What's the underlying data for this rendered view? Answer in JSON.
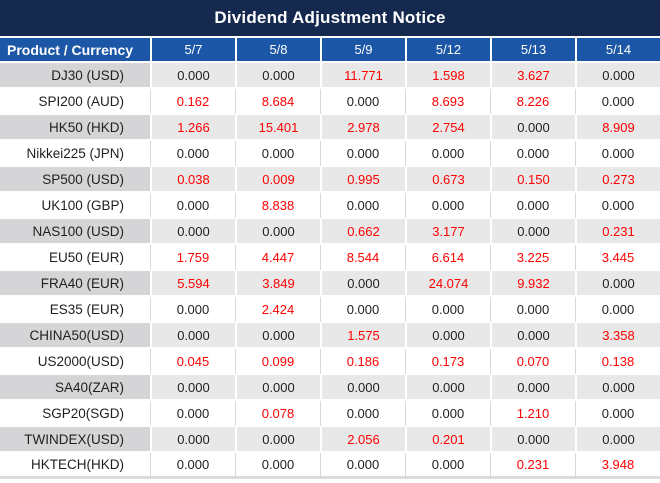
{
  "title": "Dividend Adjustment Notice",
  "colors": {
    "title_bg": "#15294e",
    "header_bg": "#1c57a7",
    "stripe_bg": "#e8e8e8",
    "stripe_first_col_bg": "#d5d5d7",
    "red_value": "#fe0000",
    "black_value": "#1f1f1f"
  },
  "table": {
    "product_header": "Product / Currency",
    "date_headers": [
      "5/7",
      "5/8",
      "5/9",
      "5/12",
      "5/13",
      "5/14"
    ],
    "rows": [
      {
        "product": "DJ30 (USD)",
        "values": [
          "0.000",
          "0.000",
          "11.771",
          "1.598",
          "3.627",
          "0.000"
        ],
        "red": [
          false,
          false,
          true,
          true,
          true,
          false
        ]
      },
      {
        "product": "SPI200 (AUD)",
        "values": [
          "0.162",
          "8.684",
          "0.000",
          "8.693",
          "8.226",
          "0.000"
        ],
        "red": [
          true,
          true,
          false,
          true,
          true,
          false
        ]
      },
      {
        "product": "HK50 (HKD)",
        "values": [
          "1.266",
          "15.401",
          "2.978",
          "2.754",
          "0.000",
          "8.909"
        ],
        "red": [
          true,
          true,
          true,
          true,
          false,
          true
        ]
      },
      {
        "product": "Nikkei225 (JPN)",
        "values": [
          "0.000",
          "0.000",
          "0.000",
          "0.000",
          "0.000",
          "0.000"
        ],
        "red": [
          false,
          false,
          false,
          false,
          false,
          false
        ]
      },
      {
        "product": "SP500 (USD)",
        "values": [
          "0.038",
          "0.009",
          "0.995",
          "0.673",
          "0.150",
          "0.273"
        ],
        "red": [
          true,
          true,
          true,
          true,
          true,
          true
        ]
      },
      {
        "product": "UK100 (GBP)",
        "values": [
          "0.000",
          "8.838",
          "0.000",
          "0.000",
          "0.000",
          "0.000"
        ],
        "red": [
          false,
          true,
          false,
          false,
          false,
          false
        ]
      },
      {
        "product": "NAS100 (USD)",
        "values": [
          "0.000",
          "0.000",
          "0.662",
          "3.177",
          "0.000",
          "0.231"
        ],
        "red": [
          false,
          false,
          true,
          true,
          false,
          true
        ]
      },
      {
        "product": "EU50 (EUR)",
        "values": [
          "1.759",
          "4.447",
          "8.544",
          "6.614",
          "3.225",
          "3.445"
        ],
        "red": [
          true,
          true,
          true,
          true,
          true,
          true
        ]
      },
      {
        "product": "FRA40 (EUR)",
        "values": [
          "5.594",
          "3.849",
          "0.000",
          "24.074",
          "9.932",
          "0.000"
        ],
        "red": [
          true,
          true,
          false,
          true,
          true,
          false
        ]
      },
      {
        "product": "ES35 (EUR)",
        "values": [
          "0.000",
          "2.424",
          "0.000",
          "0.000",
          "0.000",
          "0.000"
        ],
        "red": [
          false,
          true,
          false,
          false,
          false,
          false
        ]
      },
      {
        "product": "CHINA50(USD)",
        "values": [
          "0.000",
          "0.000",
          "1.575",
          "0.000",
          "0.000",
          "3.358"
        ],
        "red": [
          false,
          false,
          true,
          false,
          false,
          true
        ]
      },
      {
        "product": "US2000(USD)",
        "values": [
          "0.045",
          "0.099",
          "0.186",
          "0.173",
          "0.070",
          "0.138"
        ],
        "red": [
          true,
          true,
          true,
          true,
          true,
          true
        ]
      },
      {
        "product": "SA40(ZAR)",
        "values": [
          "0.000",
          "0.000",
          "0.000",
          "0.000",
          "0.000",
          "0.000"
        ],
        "red": [
          false,
          false,
          false,
          false,
          false,
          false
        ]
      },
      {
        "product": "SGP20(SGD)",
        "values": [
          "0.000",
          "0.078",
          "0.000",
          "0.000",
          "1.210",
          "0.000"
        ],
        "red": [
          false,
          true,
          false,
          false,
          true,
          false
        ]
      },
      {
        "product": "TWINDEX(USD)",
        "values": [
          "0.000",
          "0.000",
          "2.056",
          "0.201",
          "0.000",
          "0.000"
        ],
        "red": [
          false,
          false,
          true,
          true,
          false,
          false
        ]
      },
      {
        "product": "HKTECH(HKD)",
        "values": [
          "0.000",
          "0.000",
          "0.000",
          "0.000",
          "0.231",
          "3.948"
        ],
        "red": [
          false,
          false,
          false,
          false,
          true,
          true
        ]
      }
    ]
  }
}
